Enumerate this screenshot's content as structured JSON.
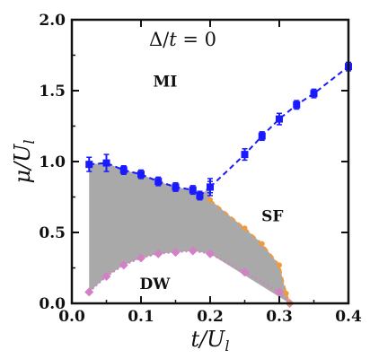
{
  "chart_data": {
    "type": "line",
    "title": "",
    "annotation": {
      "left": "Δ/",
      "var": "t",
      "right": " = 0"
    },
    "xlabel": {
      "main": "t/U",
      "sub": "l"
    },
    "ylabel": {
      "main": "μ/U",
      "sub": "l"
    },
    "xlim": [
      0.0,
      0.4
    ],
    "ylim": [
      0.0,
      2.0
    ],
    "xticks": [
      0.0,
      0.1,
      0.2,
      0.3,
      0.4
    ],
    "yticks": [
      0.0,
      0.5,
      1.0,
      1.5,
      2.0
    ],
    "xtick_labels": [
      "0.0",
      "0.1",
      "0.2",
      "0.3",
      "0.4"
    ],
    "ytick_labels": [
      "0.0",
      "0.5",
      "1.0",
      "1.5",
      "2.0"
    ],
    "grid": false,
    "region_labels": [
      "MI",
      "SF",
      "DW"
    ],
    "shaded_region": {
      "color": "#a9a9a9",
      "between": [
        "upper_boundary",
        "lower_boundary"
      ]
    },
    "series": [
      {
        "key": "upper_boundary",
        "color": "#1a1aff",
        "marker": "square",
        "style": "dashed",
        "x": [
          0.025,
          0.05,
          0.075,
          0.1,
          0.125,
          0.15,
          0.175,
          0.185,
          0.2
        ],
        "y": [
          0.98,
          0.99,
          0.94,
          0.91,
          0.86,
          0.82,
          0.8,
          0.76,
          0.82
        ],
        "errors": [
          0.05,
          0.06,
          0.03,
          0.03,
          0.03,
          0.03,
          0.03,
          0.03,
          0.06
        ]
      },
      {
        "key": "lower_boundary",
        "color": "#d47fc6",
        "marker": "diamond",
        "style": "dotted",
        "x": [
          0.025,
          0.05,
          0.075,
          0.1,
          0.125,
          0.15,
          0.175,
          0.2,
          0.25,
          0.3,
          0.315
        ],
        "y": [
          0.08,
          0.19,
          0.27,
          0.32,
          0.35,
          0.36,
          0.37,
          0.35,
          0.22,
          0.08,
          0.0
        ]
      },
      {
        "key": "sf_upper",
        "color": "#1a1aff",
        "marker": "square",
        "style": "dashed",
        "x": [
          0.2,
          0.25,
          0.275,
          0.3,
          0.325,
          0.35,
          0.4
        ],
        "y": [
          0.82,
          1.05,
          1.18,
          1.3,
          1.4,
          1.48,
          1.67
        ],
        "errors": [
          0.04,
          0.04,
          0.03,
          0.04,
          0.03,
          0.03,
          0.03
        ]
      },
      {
        "key": "sf_lower",
        "color": "#f09a3e",
        "marker": "circle",
        "style": "dashed",
        "x": [
          0.2,
          0.25,
          0.275,
          0.3,
          0.31,
          0.315
        ],
        "y": [
          0.73,
          0.53,
          0.42,
          0.27,
          0.07,
          0.0
        ]
      }
    ]
  }
}
